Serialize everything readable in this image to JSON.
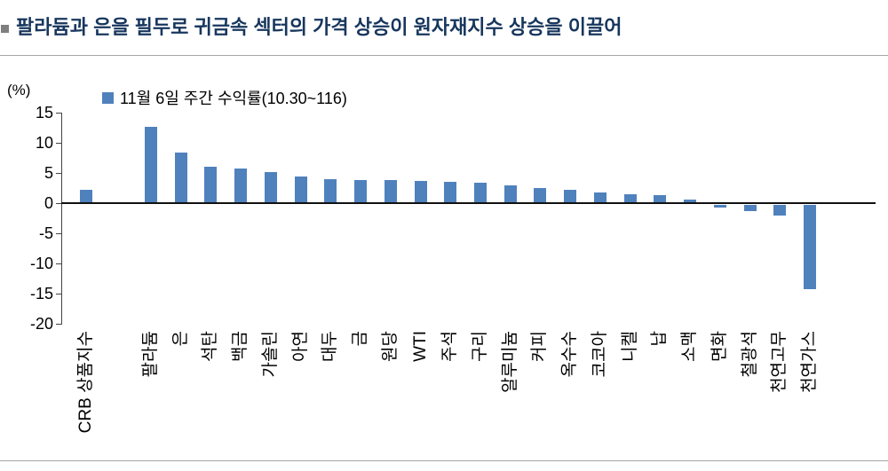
{
  "colors": {
    "bar": "#4f81bd",
    "title": "#17365d",
    "rule": "#a6a6a6"
  },
  "chart_data": {
    "type": "bar",
    "title": "팔라듐과 은을 필두로 귀금속 섹터의 가격 상승이 원자재지수 상승을 이끌어",
    "legend": "11월 6일 주간 수익률(10.30~116)",
    "ylabel": "(%)",
    "ylim": [
      -20,
      15
    ],
    "yticks": [
      15,
      10,
      5,
      0,
      -5,
      -10,
      -15,
      -20
    ],
    "grid": false,
    "legend_position": "top-left",
    "bar_color": "#4f81bd",
    "categories": [
      "CRB 상품지수",
      "팔라듐",
      "은",
      "석탄",
      "백금",
      "가솔린",
      "아연",
      "대두",
      "금",
      "원당",
      "WTI",
      "주석",
      "구리",
      "알루미늄",
      "커피",
      "옥수수",
      "코코아",
      "니켈",
      "납",
      "소맥",
      "면화",
      "철광석",
      "천연고무",
      "천연가스"
    ],
    "values": [
      2.2,
      12.7,
      8.4,
      6.0,
      5.7,
      5.1,
      4.4,
      4.0,
      3.8,
      3.8,
      3.7,
      3.5,
      3.4,
      2.9,
      2.5,
      2.2,
      1.8,
      1.5,
      1.3,
      0.6,
      -0.4,
      -1.0,
      -1.8,
      -14.0
    ]
  }
}
